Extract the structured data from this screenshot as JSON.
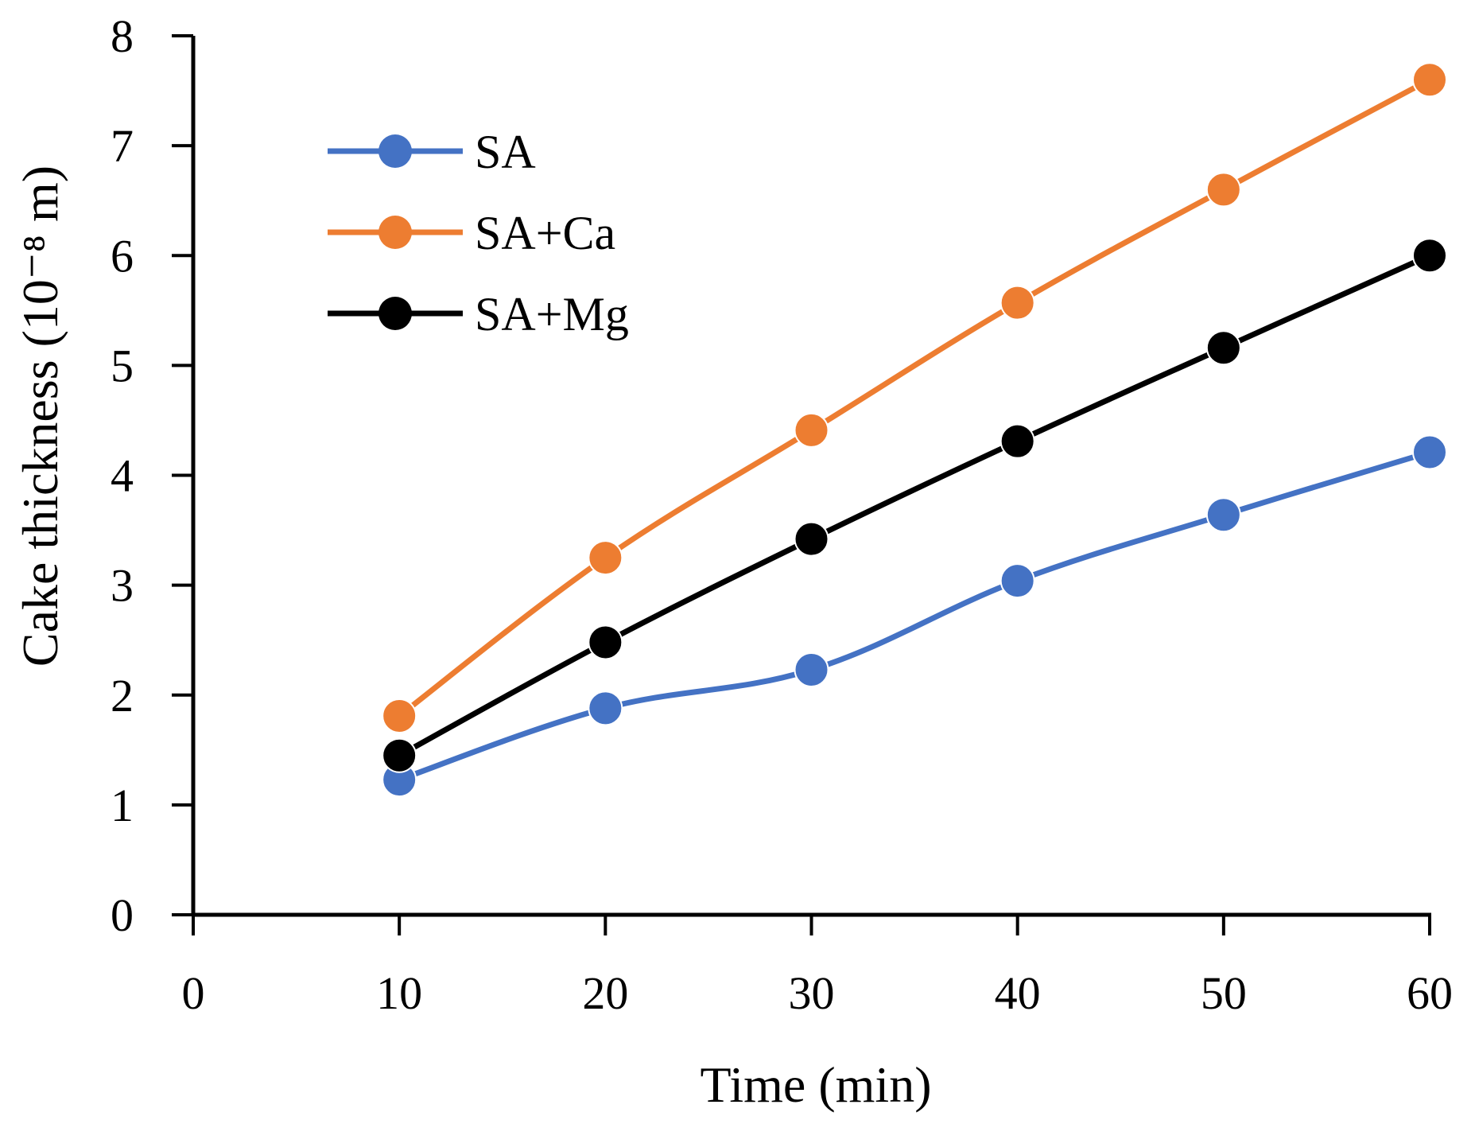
{
  "chart_data": {
    "type": "line",
    "title": "",
    "xlabel": "Time (min)",
    "ylabel": "Cake thickness (10⁻⁸ m)",
    "xlim": [
      0,
      60
    ],
    "ylim": [
      0,
      8
    ],
    "x_ticks": [
      "0",
      "10",
      "20",
      "30",
      "40",
      "50",
      "60"
    ],
    "y_ticks": [
      "0",
      "1",
      "2",
      "3",
      "4",
      "5",
      "6",
      "7",
      "8"
    ],
    "grid": false,
    "legend_position": "top-left",
    "x": [
      10,
      20,
      30,
      40,
      50,
      60
    ],
    "series": [
      {
        "name": "SA",
        "color": "#4472C4",
        "values": [
          1.23,
          1.88,
          2.23,
          3.04,
          3.64,
          4.21
        ]
      },
      {
        "name": "SA+Ca",
        "color": "#ED7D31",
        "values": [
          1.81,
          3.25,
          4.41,
          5.57,
          6.6,
          7.6
        ]
      },
      {
        "name": "SA+Mg",
        "color": "#000000",
        "values": [
          1.45,
          2.48,
          3.42,
          4.31,
          5.16,
          6.0
        ]
      }
    ]
  }
}
